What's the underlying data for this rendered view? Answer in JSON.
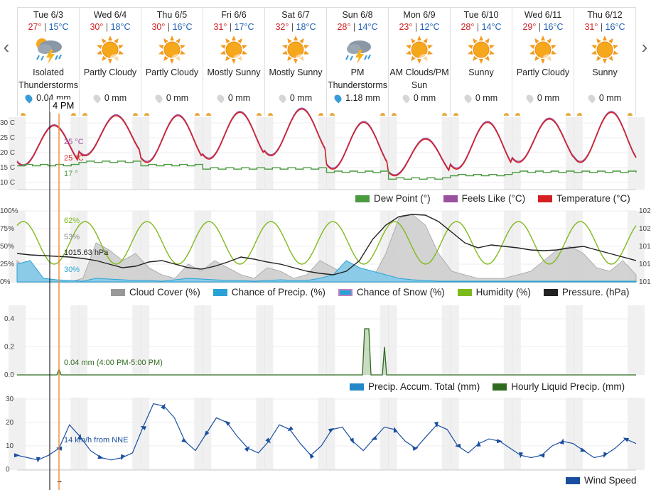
{
  "nav": {
    "prev_icon": "chevron-left-icon",
    "next_icon": "chevron-right-icon"
  },
  "days": [
    {
      "date": "Tue 6/3",
      "high": "27°",
      "low": "15°C",
      "icon": "thunder-sun-icon",
      "cond": "Isolated Thunderstorms",
      "precip": "0.04 mm",
      "drop": "blue"
    },
    {
      "date": "Wed 6/4",
      "high": "30°",
      "low": "18°C",
      "icon": "sun-cloud-icon",
      "cond": "Partly Cloudy",
      "precip": "0 mm",
      "drop": "gray"
    },
    {
      "date": "Thu 6/5",
      "high": "30°",
      "low": "16°C",
      "icon": "sun-cloud-icon",
      "cond": "Partly Cloudy",
      "precip": "0 mm",
      "drop": "gray"
    },
    {
      "date": "Fri 6/6",
      "high": "31°",
      "low": "17°C",
      "icon": "sun-cloud-icon",
      "cond": "Mostly Sunny",
      "precip": "0 mm",
      "drop": "gray"
    },
    {
      "date": "Sat 6/7",
      "high": "32°",
      "low": "18°C",
      "icon": "sun-cloud-icon",
      "cond": "Mostly Sunny",
      "precip": "0 mm",
      "drop": "gray"
    },
    {
      "date": "Sun 6/8",
      "high": "28°",
      "low": "14°C",
      "icon": "thunder-cloud-icon",
      "cond": "PM Thunderstorms",
      "precip": "1.18 mm",
      "drop": "blue"
    },
    {
      "date": "Mon 6/9",
      "high": "23°",
      "low": "12°C",
      "icon": "sun-cloud-icon",
      "cond": "AM Clouds/PM Sun",
      "precip": "0 mm",
      "drop": "gray"
    },
    {
      "date": "Tue 6/10",
      "high": "28°",
      "low": "14°C",
      "icon": "sun-icon",
      "cond": "Sunny",
      "precip": "0 mm",
      "drop": "gray"
    },
    {
      "date": "Wed 6/11",
      "high": "29°",
      "low": "16°C",
      "icon": "sun-cloud-icon",
      "cond": "Partly Cloudy",
      "precip": "0 mm",
      "drop": "gray"
    },
    {
      "date": "Thu 6/12",
      "high": "31°",
      "low": "16°C",
      "icon": "sun-icon",
      "cond": "Sunny",
      "precip": "0 mm",
      "drop": "gray"
    }
  ],
  "cursor": {
    "time_label": "4 PM"
  },
  "temp_panel": {
    "y_ticks": [
      "30 C",
      "25 C",
      "20 C",
      "15 C",
      "10 C"
    ],
    "readouts": {
      "feels": "25 °C",
      "temp": "25 °C",
      "dew": "17 °"
    },
    "legend": [
      "Dew Point (°)",
      "Feels Like (°C)",
      "Temperature (°C)"
    ],
    "colors": {
      "dew": "#4a9a3f",
      "feels": "#9b4fa0",
      "temp": "#d42020"
    }
  },
  "cloud_panel": {
    "y_ticks": [
      "100%",
      "75%",
      "50%",
      "25%",
      "0%"
    ],
    "right_ticks": [
      "102",
      "102",
      "101",
      "101",
      "101"
    ],
    "readouts": {
      "humidity": "62%",
      "cloud": "53%",
      "pressure": "1015.63 hPa",
      "precip": "30%"
    },
    "legend": [
      "Cloud Cover (%)",
      "Chance of Precip. (%)",
      "Chance of Snow (%)",
      "Humidity (%)",
      "Pressure. (hPa)"
    ],
    "colors": {
      "cloud": "#999999",
      "precip": "#29a3d6",
      "snow": "#c07fc0",
      "humidity": "#7dbb1c",
      "pressure": "#222222"
    }
  },
  "precip_panel": {
    "y_ticks": [
      "0.4",
      "0.2",
      "0.0"
    ],
    "readout": "0.04 mm (4:00 PM-5:00 PM)",
    "legend": [
      "Precip. Accum. Total (mm)",
      "Hourly Liquid Precip. (mm)"
    ],
    "colors": {
      "total": "#2288c8",
      "hourly": "#2f6b1f"
    }
  },
  "wind_panel": {
    "y_ticks": [
      "30",
      "20",
      "10",
      "0"
    ],
    "readout": "14 km/h from NNE",
    "legend": [
      "Wind Speed"
    ],
    "color": "#1a4fa0"
  }
}
